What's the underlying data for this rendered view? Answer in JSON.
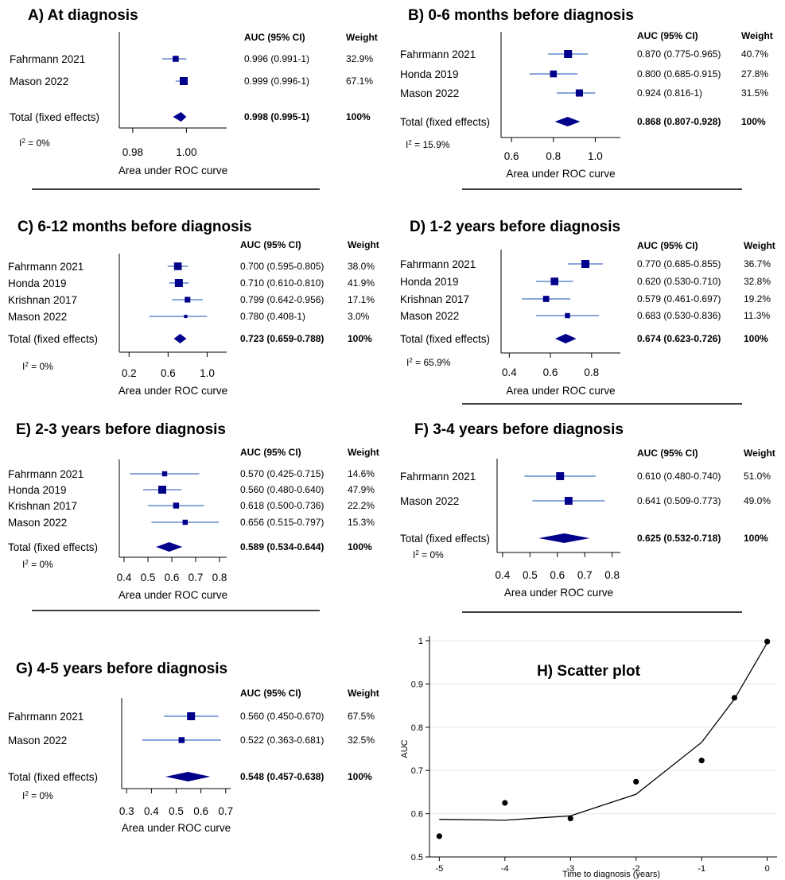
{
  "chart_data": [
    {
      "id": "A",
      "type": "forest",
      "title": "A) At diagnosis",
      "columns": {
        "auc": "AUC (95% CI)",
        "weight": "Weight"
      },
      "xlabel": "Area under ROC curve",
      "xlim": [
        0.975,
        1.015
      ],
      "ticks": [
        0.98,
        1.0
      ],
      "tick_labels": [
        "0.98",
        "1.00"
      ],
      "studies": [
        {
          "name": "Fahrmann 2021",
          "auc": 0.996,
          "lo": 0.991,
          "hi": 1.0,
          "ci_text": "0.996 (0.991-1)",
          "weight_text": "32.9%",
          "weight": 32.9
        },
        {
          "name": "Mason 2022",
          "auc": 0.999,
          "lo": 0.996,
          "hi": 1.0,
          "ci_text": "0.999 (0.996-1)",
          "weight_text": "67.1%",
          "weight": 67.1
        }
      ],
      "total": {
        "name": "Total (fixed effects)",
        "auc": 0.998,
        "lo": 0.995,
        "hi": 1.0,
        "ci_text": "0.998 (0.995-1)",
        "weight_text": "100%"
      },
      "i2": "0%"
    },
    {
      "id": "B",
      "type": "forest",
      "title": "B) 0-6 months before diagnosis",
      "columns": {
        "auc": "AUC (95% CI)",
        "weight": "Weight"
      },
      "xlabel": "Area under ROC curve",
      "xlim": [
        0.55,
        1.12
      ],
      "ticks": [
        0.6,
        0.8,
        1.0
      ],
      "tick_labels": [
        "0.6",
        "0.8",
        "1.0"
      ],
      "studies": [
        {
          "name": "Fahrmann 2021",
          "auc": 0.87,
          "lo": 0.775,
          "hi": 0.965,
          "ci_text": "0.870 (0.775-0.965)",
          "weight_text": "40.7%",
          "weight": 40.7
        },
        {
          "name": "Honda 2019",
          "auc": 0.8,
          "lo": 0.685,
          "hi": 0.915,
          "ci_text": "0.800 (0.685-0.915)",
          "weight_text": "27.8%",
          "weight": 27.8
        },
        {
          "name": "Mason 2022",
          "auc": 0.924,
          "lo": 0.816,
          "hi": 1.0,
          "ci_text": "0.924 (0.816-1)",
          "weight_text": "31.5%",
          "weight": 31.5
        }
      ],
      "total": {
        "name": "Total (fixed effects)",
        "auc": 0.868,
        "lo": 0.807,
        "hi": 0.928,
        "ci_text": "0.868 (0.807-0.928)",
        "weight_text": "100%"
      },
      "i2": "15.9%"
    },
    {
      "id": "C",
      "type": "forest",
      "title": "C) 6-12 months before diagnosis",
      "columns": {
        "auc": "AUC (95% CI)",
        "weight": "Weight"
      },
      "xlabel": "Area under ROC curve",
      "xlim": [
        0.1,
        1.2
      ],
      "ticks": [
        0.2,
        0.6,
        1.0
      ],
      "tick_labels": [
        "0.2",
        "0.6",
        "1.0"
      ],
      "studies": [
        {
          "name": "Fahrmann 2021",
          "auc": 0.7,
          "lo": 0.595,
          "hi": 0.805,
          "ci_text": "0.700 (0.595-0.805)",
          "weight_text": "38.0%",
          "weight": 38.0
        },
        {
          "name": "Honda 2019",
          "auc": 0.71,
          "lo": 0.61,
          "hi": 0.81,
          "ci_text": "0.710 (0.610-0.810)",
          "weight_text": "41.9%",
          "weight": 41.9
        },
        {
          "name": "Krishnan 2017",
          "auc": 0.799,
          "lo": 0.642,
          "hi": 0.956,
          "ci_text": "0.799 (0.642-0.956)",
          "weight_text": "17.1%",
          "weight": 17.1
        },
        {
          "name": "Mason 2022",
          "auc": 0.78,
          "lo": 0.408,
          "hi": 1.0,
          "ci_text": "0.780 (0.408-1)",
          "weight_text": "3.0%",
          "weight": 3.0
        }
      ],
      "total": {
        "name": "Total (fixed effects)",
        "auc": 0.723,
        "lo": 0.659,
        "hi": 0.788,
        "ci_text": "0.723 (0.659-0.788)",
        "weight_text": "100%"
      },
      "i2": "0%"
    },
    {
      "id": "D",
      "type": "forest",
      "title": "D) 1-2 years before diagnosis",
      "columns": {
        "auc": "AUC (95% CI)",
        "weight": "Weight"
      },
      "xlabel": "Area under ROC curve",
      "xlim": [
        0.36,
        0.94
      ],
      "ticks": [
        0.4,
        0.6,
        0.8
      ],
      "tick_labels": [
        "0.4",
        "0.6",
        "0.8"
      ],
      "studies": [
        {
          "name": "Fahrmann 2021",
          "auc": 0.77,
          "lo": 0.685,
          "hi": 0.855,
          "ci_text": "0.770 (0.685-0.855)",
          "weight_text": "36.7%",
          "weight": 36.7
        },
        {
          "name": "Honda 2019",
          "auc": 0.62,
          "lo": 0.53,
          "hi": 0.71,
          "ci_text": "0.620 (0.530-0.710)",
          "weight_text": "32.8%",
          "weight": 32.8
        },
        {
          "name": "Krishnan 2017",
          "auc": 0.579,
          "lo": 0.461,
          "hi": 0.697,
          "ci_text": "0.579 (0.461-0.697)",
          "weight_text": "19.2%",
          "weight": 19.2
        },
        {
          "name": "Mason 2022",
          "auc": 0.683,
          "lo": 0.53,
          "hi": 0.836,
          "ci_text": "0.683 (0.530-0.836)",
          "weight_text": "11.3%",
          "weight": 11.3
        }
      ],
      "total": {
        "name": "Total (fixed effects)",
        "auc": 0.674,
        "lo": 0.623,
        "hi": 0.726,
        "ci_text": "0.674 (0.623-0.726)",
        "weight_text": "100%"
      },
      "i2": "65.9%"
    },
    {
      "id": "E",
      "type": "forest",
      "title": "E) 2-3 years before diagnosis",
      "columns": {
        "auc": "AUC (95% CI)",
        "weight": "Weight"
      },
      "xlabel": "Area under ROC curve",
      "xlim": [
        0.38,
        0.83
      ],
      "ticks": [
        0.4,
        0.5,
        0.6,
        0.7,
        0.8
      ],
      "tick_labels": [
        "0.4",
        "0.5",
        "0.6",
        "0.7",
        "0.8"
      ],
      "studies": [
        {
          "name": "Fahrmann 2021",
          "auc": 0.57,
          "lo": 0.425,
          "hi": 0.715,
          "ci_text": "0.570 (0.425-0.715)",
          "weight_text": "14.6%",
          "weight": 14.6
        },
        {
          "name": "Honda 2019",
          "auc": 0.56,
          "lo": 0.48,
          "hi": 0.64,
          "ci_text": "0.560 (0.480-0.640)",
          "weight_text": "47.9%",
          "weight": 47.9
        },
        {
          "name": "Krishnan 2017",
          "auc": 0.618,
          "lo": 0.5,
          "hi": 0.736,
          "ci_text": "0.618 (0.500-0.736)",
          "weight_text": "22.2%",
          "weight": 22.2
        },
        {
          "name": "Mason 2022",
          "auc": 0.656,
          "lo": 0.515,
          "hi": 0.797,
          "ci_text": "0.656 (0.515-0.797)",
          "weight_text": "15.3%",
          "weight": 15.3
        }
      ],
      "total": {
        "name": "Total (fixed effects)",
        "auc": 0.589,
        "lo": 0.534,
        "hi": 0.644,
        "ci_text": "0.589 (0.534-0.644)",
        "weight_text": "100%"
      },
      "i2": "0%"
    },
    {
      "id": "F",
      "type": "forest",
      "title": "F) 3-4 years before diagnosis",
      "columns": {
        "auc": "AUC (95% CI)",
        "weight": "Weight"
      },
      "xlabel": "Area under ROC curve",
      "xlim": [
        0.38,
        0.83
      ],
      "ticks": [
        0.4,
        0.5,
        0.6,
        0.7,
        0.8
      ],
      "tick_labels": [
        "0.4",
        "0.5",
        "0.6",
        "0.7",
        "0.8"
      ],
      "studies": [
        {
          "name": "Fahrmann 2021",
          "auc": 0.61,
          "lo": 0.48,
          "hi": 0.74,
          "ci_text": "0.610 (0.480-0.740)",
          "weight_text": "51.0%",
          "weight": 51.0
        },
        {
          "name": "Mason 2022",
          "auc": 0.641,
          "lo": 0.509,
          "hi": 0.773,
          "ci_text": "0.641 (0.509-0.773)",
          "weight_text": "49.0%",
          "weight": 49.0
        }
      ],
      "total": {
        "name": "Total (fixed effects)",
        "auc": 0.625,
        "lo": 0.532,
        "hi": 0.718,
        "ci_text": "0.625 (0.532-0.718)",
        "weight_text": "100%"
      },
      "i2": "0%"
    },
    {
      "id": "G",
      "type": "forest",
      "title": "G) 4-5 years before diagnosis",
      "columns": {
        "auc": "AUC (95% CI)",
        "weight": "Weight"
      },
      "xlabel": "Area under ROC curve",
      "xlim": [
        0.28,
        0.72
      ],
      "ticks": [
        0.3,
        0.4,
        0.5,
        0.6,
        0.7
      ],
      "tick_labels": [
        "0.3",
        "0.4",
        "0.5",
        "0.6",
        "0.7"
      ],
      "studies": [
        {
          "name": "Fahrmann 2021",
          "auc": 0.56,
          "lo": 0.45,
          "hi": 0.67,
          "ci_text": "0.560 (0.450-0.670)",
          "weight_text": "67.5%",
          "weight": 67.5
        },
        {
          "name": "Mason 2022",
          "auc": 0.522,
          "lo": 0.363,
          "hi": 0.681,
          "ci_text": "0.522 (0.363-0.681)",
          "weight_text": "32.5%",
          "weight": 32.5
        }
      ],
      "total": {
        "name": "Total (fixed effects)",
        "auc": 0.548,
        "lo": 0.457,
        "hi": 0.638,
        "ci_text": "0.548 (0.457-0.638)",
        "weight_text": "100%"
      },
      "i2": "0%"
    },
    {
      "id": "H",
      "type": "scatter",
      "title": "H) Scatter plot",
      "xlabel": "Time to diagnosis (years)",
      "ylabel": "AUC",
      "xlim": [
        -5.15,
        0.15
      ],
      "ylim": [
        0.5,
        1.0
      ],
      "xticks": [
        -5,
        -4,
        -3,
        -2,
        -1,
        0
      ],
      "xtick_labels": [
        "-5",
        "-4",
        "-3",
        "-2",
        "-1",
        "0"
      ],
      "yticks": [
        0.5,
        0.6,
        0.7,
        0.8,
        0.9,
        1.0
      ],
      "ytick_labels": [
        "0.5",
        "0.6",
        "0.7",
        "0.8",
        "0.9",
        "1"
      ],
      "grid": true,
      "points": [
        {
          "x": -5,
          "y": 0.548
        },
        {
          "x": -4,
          "y": 0.625
        },
        {
          "x": -3,
          "y": 0.589
        },
        {
          "x": -2,
          "y": 0.674
        },
        {
          "x": -1,
          "y": 0.723
        },
        {
          "x": -0.5,
          "y": 0.868
        },
        {
          "x": 0,
          "y": 0.998
        }
      ],
      "fit": [
        {
          "x": -5,
          "y": 0.587
        },
        {
          "x": -4,
          "y": 0.585
        },
        {
          "x": -3,
          "y": 0.595
        },
        {
          "x": -2,
          "y": 0.645
        },
        {
          "x": -1,
          "y": 0.765
        },
        {
          "x": -0.5,
          "y": 0.865
        },
        {
          "x": 0,
          "y": 0.995
        }
      ]
    }
  ],
  "colors": {
    "marker": "#00008B",
    "ci_line": "#4472C4",
    "axis": "#000000",
    "grid": "#e6e6e6"
  }
}
